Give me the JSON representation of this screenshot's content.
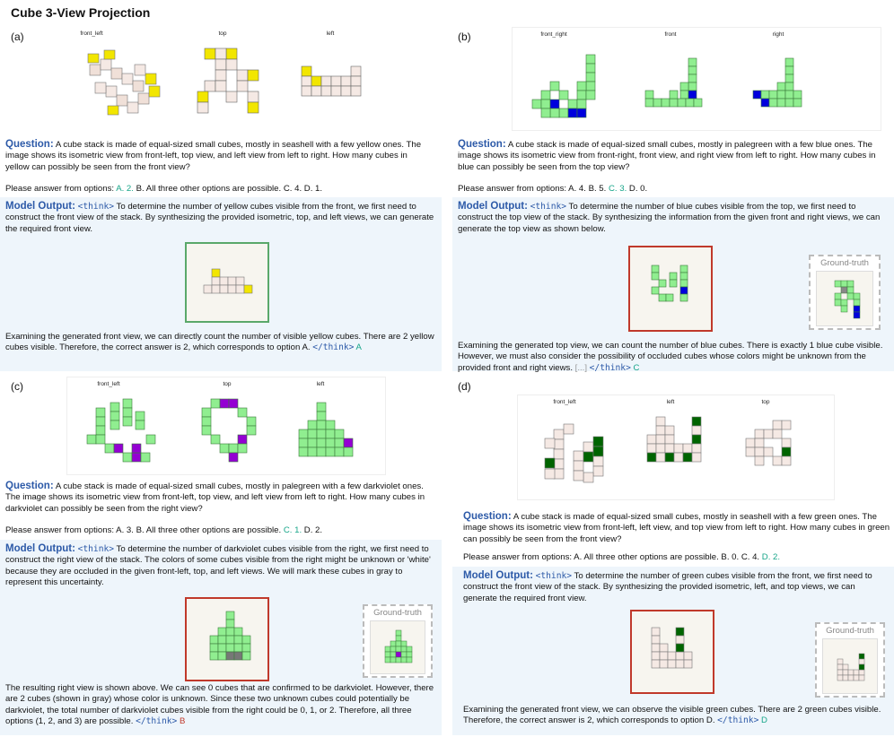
{
  "title": "Cube 3-View Projection",
  "colors": {
    "heading": "#2d5aa8",
    "correct": "#17a589",
    "wrong": "#c0392b",
    "panel_bg": "#eef5fb"
  },
  "panels": {
    "a": {
      "label": "(a)",
      "views": [
        "front_left",
        "top",
        "left"
      ],
      "q_head": "Question:",
      "q_text": "A cube stack is made of equal-sized small cubes, mostly in seashell with a few yellow ones. The image shows its isometric view from front-left, top view, and left view from left to right. How many cubes in yellow can possibly be seen from the front view?",
      "opt_pre": "Please answer from options:",
      "opt_hl": "A. 2.",
      "opt_post": "B. All three other options are possible. C. 4. D. 1.",
      "mo_head": "Model Output:",
      "think_open": "<think>",
      "mo_text1": "To determine the number of yellow cubes visible from the front, we first need to construct the front view of the stack. By synthesizing the provided isometric, top, and left views, we can generate the required front view.",
      "mo_text2": "Examining the generated front view, we can directly count the number of visible yellow cubes. There are 2 yellow cubes visible. Therefore, the correct answer is 2, which corresponds to option A.",
      "think_close": "</think>",
      "answer": "A"
    },
    "b": {
      "label": "(b)",
      "views": [
        "front_right",
        "front",
        "right"
      ],
      "q_head": "Question:",
      "q_text": "A cube stack is made of equal-sized small cubes, mostly in palegreen with a few blue ones. The image shows its isometric view from front-right, front view, and right view from left to right. How many cubes in blue can possibly be seen from the top view?",
      "opt_pre": "Please answer from options: A. 4. B. 5.",
      "opt_hl": "C. 3.",
      "opt_post": "D. 0.",
      "mo_head": "Model Output:",
      "think_open": "<think>",
      "mo_text1": "To determine the number of blue cubes visible from the top, we first need to construct the top view of the stack. By synthesizing the information from the given front and right views, we can generate the top view as shown below.",
      "gt_label": "Ground-truth",
      "mo_text2": "Examining the generated top view, we can count the number of blue cubes. There is exactly 1 blue cube visible. However, we must also consider the possibility of occluded cubes whose colors might be unknown from the provided front and right views.",
      "ellipsis": "[...]",
      "think_close": "</think>",
      "answer": "C"
    },
    "c": {
      "label": "(c)",
      "views": [
        "front_left",
        "top",
        "left"
      ],
      "q_head": "Question:",
      "q_text": "A cube stack is made of equal-sized small cubes, mostly in palegreen with a few darkviolet ones. The image shows its isometric view from front-left, top view, and left view from left to right. How many cubes in darkviolet can possibly be seen from the right view?",
      "opt_pre": "Please answer from options: A. 3. B. All three other options are possible.",
      "opt_hl": "C. 1.",
      "opt_post": "D. 2.",
      "mo_head": "Model Output:",
      "think_open": "<think>",
      "mo_text1": "To determine the number of darkviolet cubes visible from the right, we first need to construct the right view of the stack. The colors of some cubes visible from the right might be unknown or 'white' because they are occluded in the given front-left, top, and left views. We will mark these cubes in gray to represent this uncertainty.",
      "gt_label": "Ground-truth",
      "mo_text2": "The resulting right view is shown above. We can see 0 cubes that are confirmed to be darkviolet. However, there are 2 cubes (shown in gray) whose color is unknown. Since these two unknown cubes could potentially be darkviolet, the total number of darkviolet cubes visible from the right could be 0, 1, or 2. Therefore, all three options (1, 2, and 3) are possible.",
      "think_close": "</think>",
      "answer": "B"
    },
    "d": {
      "label": "(d)",
      "views": [
        "front_left",
        "left",
        "top"
      ],
      "q_head": "Question:",
      "q_text": "A cube stack is made of equal-sized small cubes, mostly in seashell with a few green ones. The image shows its isometric view from front-left, left view, and top view from left to right. How many cubes in green can possibly be seen from the front view?",
      "opt_pre": "Please answer from options: A. All three other options are possible. B. 0. C. 4.",
      "opt_hl": "D. 2.",
      "opt_post": "",
      "mo_head": "Model Output:",
      "think_open": "<think>",
      "mo_text1": "To determine the number of green cubes visible from the front, we first need to construct the front view of the stack. By synthesizing the provided isometric, left, and top views, we can generate the required front view.",
      "gt_label": "Ground-truth",
      "mo_text2": "Examining the generated front view, we can observe the visible green cubes. There are 2 green cubes visible. Therefore, the correct answer is 2, which corresponds to option D.",
      "think_close": "</think>",
      "answer": "D"
    }
  }
}
